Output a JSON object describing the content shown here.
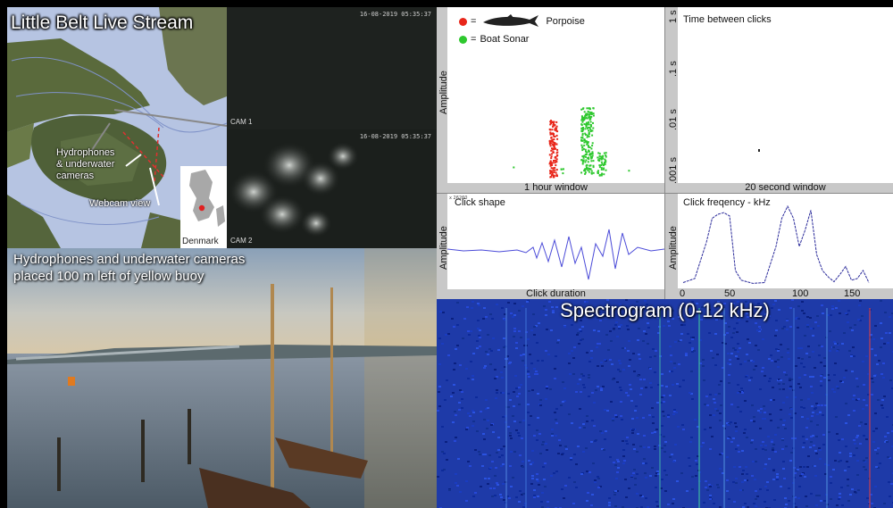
{
  "map": {
    "title": "Little Belt Live Stream",
    "hydrophone_label_1": "Hydrophones",
    "hydrophone_label_2": "& underwater",
    "hydrophone_label_3": "cameras",
    "webcam_label": "Webcam view",
    "inset_label": "Denmark"
  },
  "cam1": {
    "timestamp": "16-08-2019 05:35:37",
    "label": "CAM 1"
  },
  "cam2": {
    "timestamp": "16-08-2019 05:35:37",
    "label": "CAM 2"
  },
  "webcam": {
    "caption_line1": "Hydrophones and underwater cameras",
    "caption_line2": "placed 100 m left of yellow buoy"
  },
  "legend": {
    "porpoise": "Porpoise",
    "boat_sonar": "Boat Sonar",
    "porpoise_eq": "=",
    "sonar_eq": "=",
    "porpoise_color": "#e8261a",
    "sonar_color": "#2ec82e"
  },
  "chart_data": [
    {
      "type": "scatter",
      "ylabel": "Amplitude",
      "xlabel": "1 hour window",
      "series": [
        {
          "name": "Porpoise",
          "color": "#e8261a"
        },
        {
          "name": "Boat Sonar",
          "color": "#2ec82e"
        }
      ]
    },
    {
      "type": "scatter",
      "title": "Time between clicks",
      "xlabel": "20 second window",
      "y_ticks": [
        "1 s",
        ".1 s",
        ".01 s",
        ".001 s"
      ]
    },
    {
      "type": "line",
      "title": "Click shape",
      "ylabel": "Amplitude",
      "xlabel": "Click duration",
      "small_label": "x 26260"
    },
    {
      "type": "line",
      "title": "Click freqency - kHz",
      "ylabel": "Amplitude",
      "x_ticks": [
        "0",
        "50",
        "100",
        "150"
      ],
      "x": [
        0,
        10,
        20,
        25,
        30,
        35,
        40,
        45,
        50,
        55,
        60,
        70,
        80,
        85,
        90,
        95,
        100,
        105,
        110,
        115,
        120,
        125,
        130,
        135,
        140,
        145,
        150,
        155,
        160
      ],
      "y": [
        0.05,
        0.1,
        0.55,
        0.85,
        0.9,
        0.92,
        0.88,
        0.2,
        0.08,
        0.06,
        0.04,
        0.05,
        0.5,
        0.85,
        1.0,
        0.85,
        0.5,
        0.7,
        0.95,
        0.4,
        0.2,
        0.12,
        0.06,
        0.15,
        0.25,
        0.08,
        0.1,
        0.2,
        0.05
      ]
    }
  ],
  "spectrogram": {
    "title": "Spectrogram (0-12 kHz)"
  }
}
